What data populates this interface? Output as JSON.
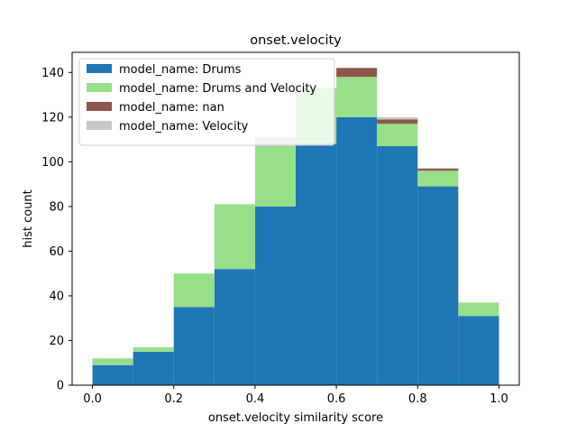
{
  "chart_data": {
    "type": "bar",
    "stacked": true,
    "title": "onset.velocity",
    "xlabel": "onset.velocity similarity score",
    "ylabel": "hist count",
    "xlim": [
      -0.05,
      1.05
    ],
    "ylim": [
      0,
      149
    ],
    "xticks": [
      0.0,
      0.2,
      0.4,
      0.6,
      0.8,
      1.0
    ],
    "xtick_labels": [
      "0.0",
      "0.2",
      "0.4",
      "0.6",
      "0.8",
      "1.0"
    ],
    "yticks": [
      0,
      20,
      40,
      60,
      80,
      100,
      120,
      140
    ],
    "ytick_labels": [
      "0",
      "20",
      "40",
      "60",
      "80",
      "100",
      "120",
      "140"
    ],
    "bin_edges": [
      0.0,
      0.1,
      0.2,
      0.3,
      0.4,
      0.5,
      0.6,
      0.7,
      0.8,
      0.9,
      1.0
    ],
    "series": [
      {
        "name": "model_name: Drums",
        "color": "#1f77b4",
        "values": [
          9,
          15,
          35,
          52,
          80,
          108,
          120,
          107,
          89,
          31
        ]
      },
      {
        "name": "model_name: Drums and Velocity",
        "color": "#98df8a",
        "values": [
          3,
          2,
          15,
          29,
          27,
          25,
          18,
          10,
          7,
          6
        ]
      },
      {
        "name": "model_name: nan",
        "color": "#8c564b",
        "values": [
          0,
          0,
          0,
          0,
          0,
          0,
          4,
          2,
          1,
          0
        ]
      },
      {
        "name": "model_name: Velocity",
        "color": "#c7c7c7",
        "values": [
          0,
          0,
          0,
          0,
          4,
          0,
          0,
          1,
          0,
          0
        ]
      }
    ],
    "grid": false,
    "legend_position": "upper-left"
  }
}
